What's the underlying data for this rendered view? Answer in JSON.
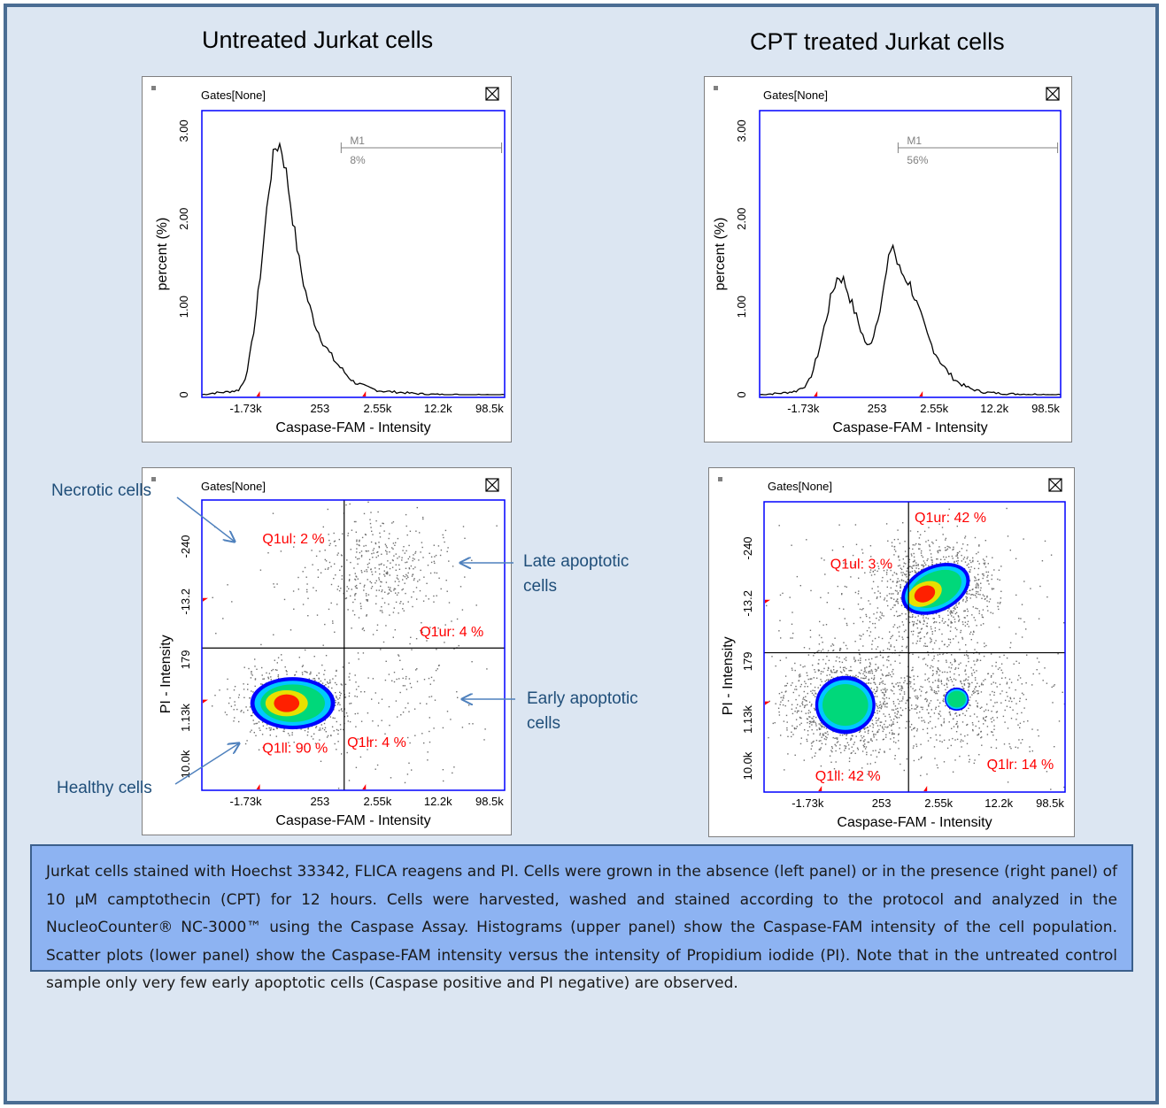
{
  "titles": {
    "left": "Untreated Jurkat cells",
    "right": "CPT treated Jurkat cells"
  },
  "colors": {
    "frame": "#4a6d93",
    "background": "#dce6f2",
    "plot_border": "#0000ff",
    "quadrant_label": "#ff0000",
    "annotation": "#1f4e79",
    "caption_box": "#8db3f2"
  },
  "annotations": {
    "necrotic": "Necrotic cells",
    "late_1": "Late apoptotic",
    "late_2": "cells",
    "early_1": "Early apoptotic",
    "early_2": "cells",
    "healthy": "Healthy cells"
  },
  "caption": "Jurkat cells stained with Hoechst 33342, FLICA reagens and PI. Cells were grown in the absence (left panel) or in the presence (right panel) of 10 µM camptothecin (CPT) for 12 hours. Cells were harvested, washed and stained according to the protocol and analyzed in the NucleoCounter® NC-3000™ using the Caspase Assay. Histograms (upper panel) show the Caspase-FAM intensity of the cell population. Scatter plots (lower panel) show the Caspase-FAM intensity versus the intensity of Propidium iodide (PI). Note that in the untreated control sample only very few early apoptotic cells (Caspase positive and PI negative) are observed.",
  "chart_data": [
    {
      "type": "line",
      "panel": "untreated-histogram",
      "gates_label": "Gates[None]",
      "xlabel": "Caspase-FAM - Intensity",
      "ylabel": "percent (%)",
      "x_ticks": [
        "-1.73k",
        "253",
        "2.55k",
        "12.2k",
        "98.5k"
      ],
      "y_ticks": [
        "0",
        "1.00",
        "2.00",
        "3.00"
      ],
      "ylim": [
        0,
        3.2
      ],
      "marker": {
        "name": "M1",
        "percent": "8%"
      },
      "x_position": [
        0.0,
        0.04,
        0.08,
        0.12,
        0.14,
        0.16,
        0.18,
        0.2,
        0.22,
        0.24,
        0.26,
        0.28,
        0.3,
        0.32,
        0.34,
        0.36,
        0.38,
        0.4,
        0.42,
        0.44,
        0.46,
        0.48,
        0.5,
        0.52,
        0.54,
        0.56,
        0.58,
        0.6,
        0.64,
        0.68,
        0.72,
        0.8,
        1.0
      ],
      "values": [
        0.0,
        0.02,
        0.03,
        0.05,
        0.15,
        0.45,
        0.95,
        1.6,
        2.3,
        2.8,
        2.85,
        2.5,
        2.0,
        1.55,
        1.2,
        0.95,
        0.75,
        0.6,
        0.48,
        0.38,
        0.3,
        0.22,
        0.15,
        0.12,
        0.09,
        0.07,
        0.05,
        0.04,
        0.03,
        0.02,
        0.01,
        0.0,
        0.0
      ]
    },
    {
      "type": "line",
      "panel": "cpt-histogram",
      "gates_label": "Gates[None]",
      "xlabel": "Caspase-FAM - Intensity",
      "ylabel": "percent (%)",
      "x_ticks": [
        "-1.73k",
        "253",
        "2.55k",
        "12.2k",
        "98.5k"
      ],
      "y_ticks": [
        "0",
        "1.00",
        "2.00",
        "3.00"
      ],
      "ylim": [
        0,
        3.2
      ],
      "marker": {
        "name": "M1",
        "percent": "56%"
      },
      "x_position": [
        0.0,
        0.08,
        0.12,
        0.16,
        0.18,
        0.2,
        0.22,
        0.24,
        0.26,
        0.28,
        0.3,
        0.32,
        0.34,
        0.36,
        0.38,
        0.4,
        0.42,
        0.44,
        0.46,
        0.48,
        0.5,
        0.52,
        0.54,
        0.56,
        0.58,
        0.6,
        0.62,
        0.64,
        0.66,
        0.68,
        0.7,
        0.72,
        0.74,
        0.78,
        0.82,
        1.0
      ],
      "values": [
        0.0,
        0.02,
        0.04,
        0.12,
        0.3,
        0.55,
        0.85,
        1.15,
        1.35,
        1.3,
        1.1,
        0.9,
        0.7,
        0.52,
        0.7,
        1.0,
        1.35,
        1.75,
        1.45,
        1.35,
        1.25,
        1.05,
        0.85,
        0.65,
        0.5,
        0.38,
        0.28,
        0.2,
        0.14,
        0.1,
        0.07,
        0.05,
        0.03,
        0.02,
        0.01,
        0.0
      ]
    },
    {
      "type": "scatter",
      "panel": "untreated-scatter",
      "gates_label": "Gates[None]",
      "xlabel": "Caspase-FAM - Intensity",
      "ylabel": "PI - Intensity",
      "x_ticks": [
        "-1.73k",
        "253",
        "2.55k",
        "12.2k",
        "98.5k"
      ],
      "y_ticks": [
        "-240",
        "-13.2",
        "179",
        "1.13k",
        "10.0k"
      ],
      "quadrants": {
        "ul": "Q1ul: 2 %",
        "ur": "Q1ur: 4 %",
        "ll": "Q1ll: 90 %",
        "lr": "Q1lr: 4 %"
      }
    },
    {
      "type": "scatter",
      "panel": "cpt-scatter",
      "gates_label": "Gates[None]",
      "xlabel": "Caspase-FAM - Intensity",
      "ylabel": "PI - Intensity",
      "x_ticks": [
        "-1.73k",
        "253",
        "2.55k",
        "12.2k",
        "98.5k"
      ],
      "y_ticks": [
        "-240",
        "-13.2",
        "179",
        "1.13k",
        "10.0k"
      ],
      "quadrants": {
        "ul": "Q1ul: 3 %",
        "ur": "Q1ur: 42 %",
        "ll": "Q1ll: 42 %",
        "lr": "Q1lr: 14 %"
      }
    }
  ]
}
